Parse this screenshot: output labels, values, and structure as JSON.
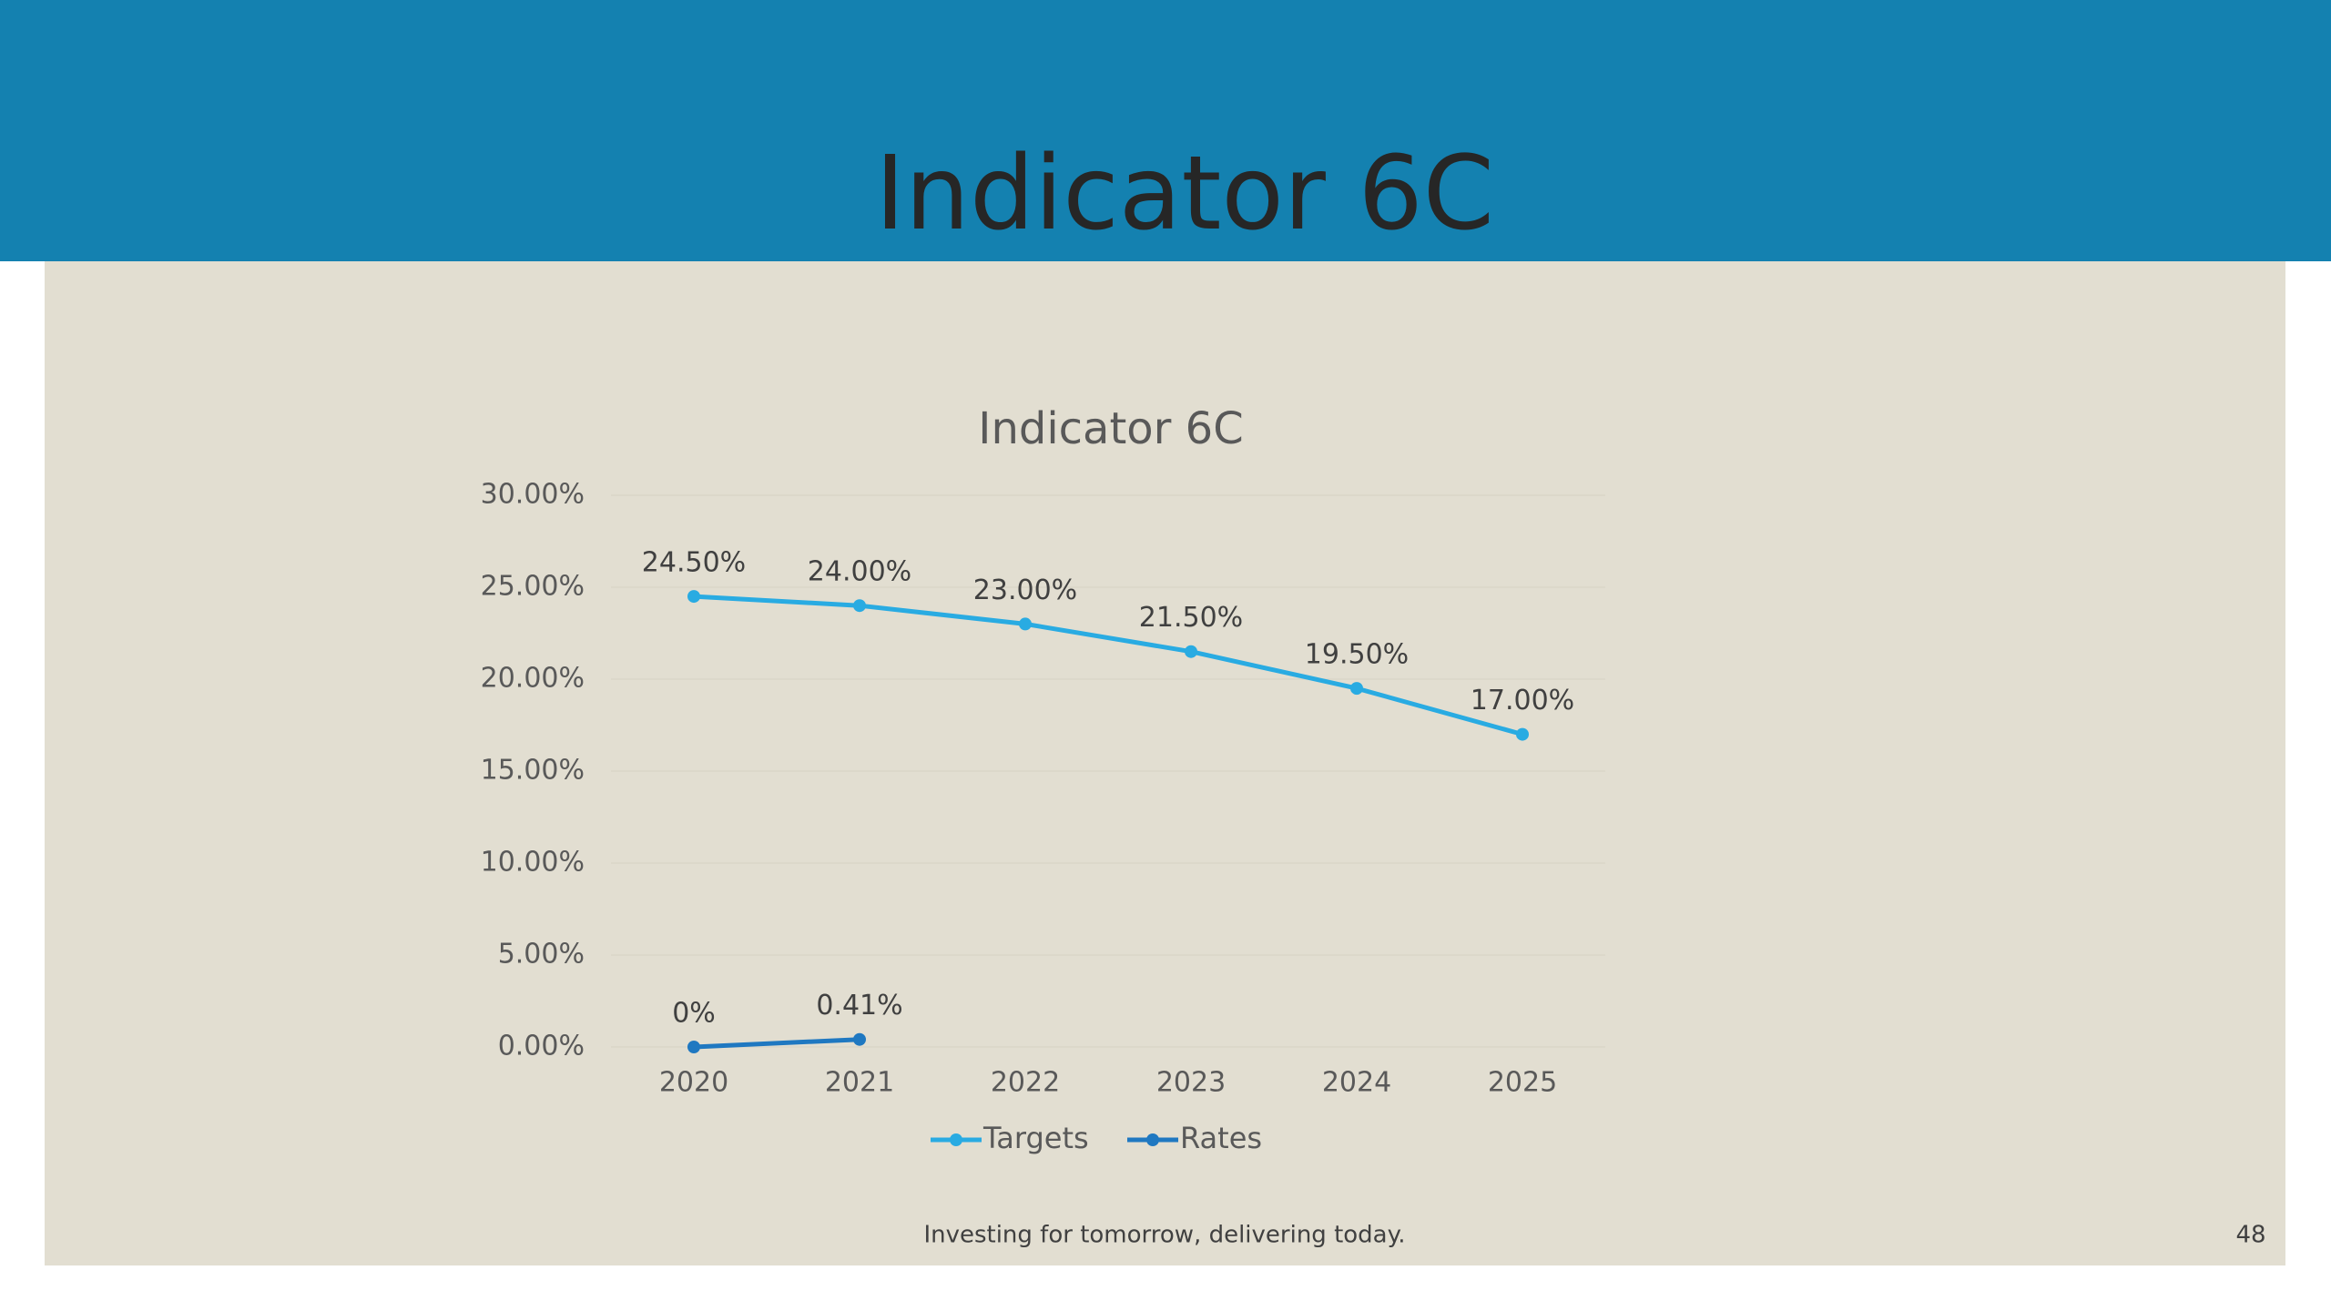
{
  "slide": {
    "title": "Indicator 6C",
    "footer": "Investing for tomorrow, delivering today.",
    "page_number": "48"
  },
  "chart_data": {
    "type": "line",
    "title": "Indicator 6C",
    "categories": [
      "2020",
      "2021",
      "2022",
      "2023",
      "2024",
      "2025"
    ],
    "series": [
      {
        "name": "Targets",
        "color": "#29abe2",
        "values": [
          24.5,
          24,
          23,
          21.5,
          19.5,
          17
        ],
        "value_labels": [
          "24.50%",
          "24.00%",
          "23.00%",
          "21.50%",
          "19.50%",
          "17.00%"
        ]
      },
      {
        "name": "Rates",
        "color": "#1f78c1",
        "values": [
          0,
          0.41,
          null,
          null,
          null,
          null
        ],
        "value_labels": [
          "0%",
          "0.41%",
          null,
          null,
          null,
          null
        ]
      }
    ],
    "ylim": [
      0,
      30
    ],
    "yticks": [
      {
        "value": 0,
        "label": "0.00%"
      },
      {
        "value": 5,
        "label": "5.00%"
      },
      {
        "value": 10,
        "label": "10.00%"
      },
      {
        "value": 15,
        "label": "15.00%"
      },
      {
        "value": 20,
        "label": "20.00%"
      },
      {
        "value": 25,
        "label": "25.00%"
      },
      {
        "value": 30,
        "label": "30.00%"
      }
    ],
    "grid": true,
    "legend": "bottom"
  }
}
